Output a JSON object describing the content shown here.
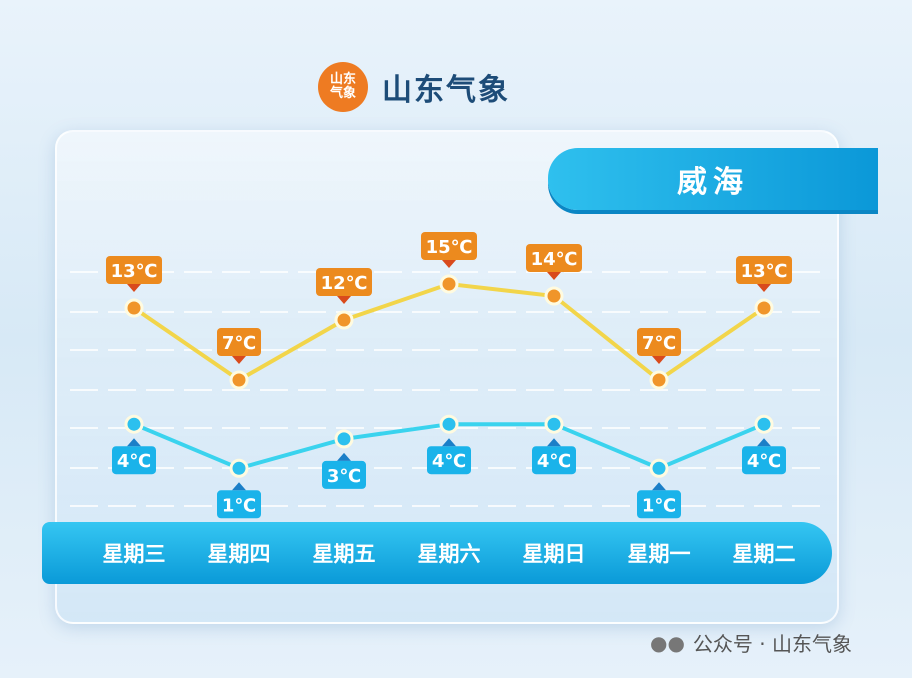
{
  "header": {
    "logo_text": [
      "山东",
      "气象"
    ],
    "brand": "山东气象"
  },
  "city": "威海",
  "watermark": "公众号 · 山东气象",
  "chart_data": {
    "type": "line",
    "categories": [
      "星期三",
      "星期四",
      "星期五",
      "星期六",
      "星期日",
      "星期一",
      "星期二"
    ],
    "series": [
      {
        "values": [
          13,
          7,
          12,
          15,
          14,
          7,
          13
        ],
        "color": "#f2d54a",
        "label_color": "#ec8a1e"
      },
      {
        "values": [
          4,
          1,
          3,
          4,
          4,
          1,
          4
        ],
        "color": "#3ad3ee",
        "label_color": "#1ab3ea"
      }
    ],
    "unit": "℃",
    "grid": true
  }
}
